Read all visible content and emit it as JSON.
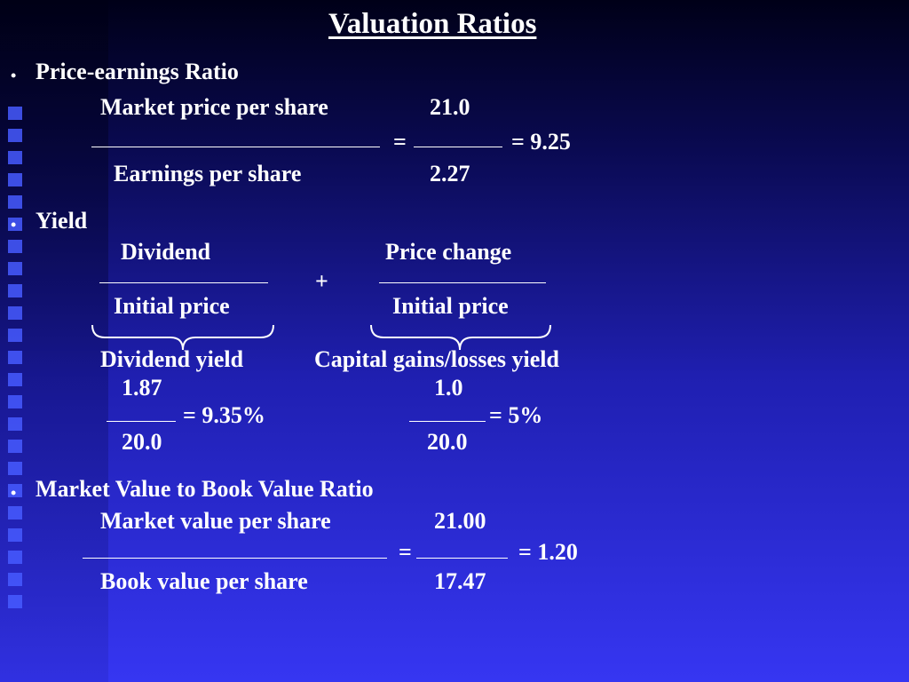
{
  "title": "Valuation Ratios",
  "bullet_glyph": "•",
  "pe": {
    "heading": "Price-earnings Ratio",
    "numerator_label": "Market price per share",
    "numerator_value": "21.0",
    "equals": "=",
    "result": "= 9.25",
    "denominator_label": "Earnings per share",
    "denominator_value": "2.27"
  },
  "yield": {
    "heading": "Yield",
    "dividend_label": "Dividend",
    "price_change_label": "Price change",
    "plus": "+",
    "initial_price_left": "Initial price",
    "initial_price_right": "Initial price",
    "dividend_yield_label": "Dividend yield",
    "capital_yield_label": "Capital gains/losses yield",
    "div_numerator": "1.87",
    "div_result": "= 9.35%",
    "div_denominator": "20.0",
    "cap_numerator": "1.0",
    "cap_result": "= 5%",
    "cap_denominator": "20.0"
  },
  "mvbv": {
    "heading": "Market Value to Book Value Ratio",
    "numerator_label": "Market value per share",
    "numerator_value": "21.00",
    "equals": "=",
    "result": "= 1.20",
    "denominator_label": "Book value per share",
    "denominator_value": "17.47"
  }
}
